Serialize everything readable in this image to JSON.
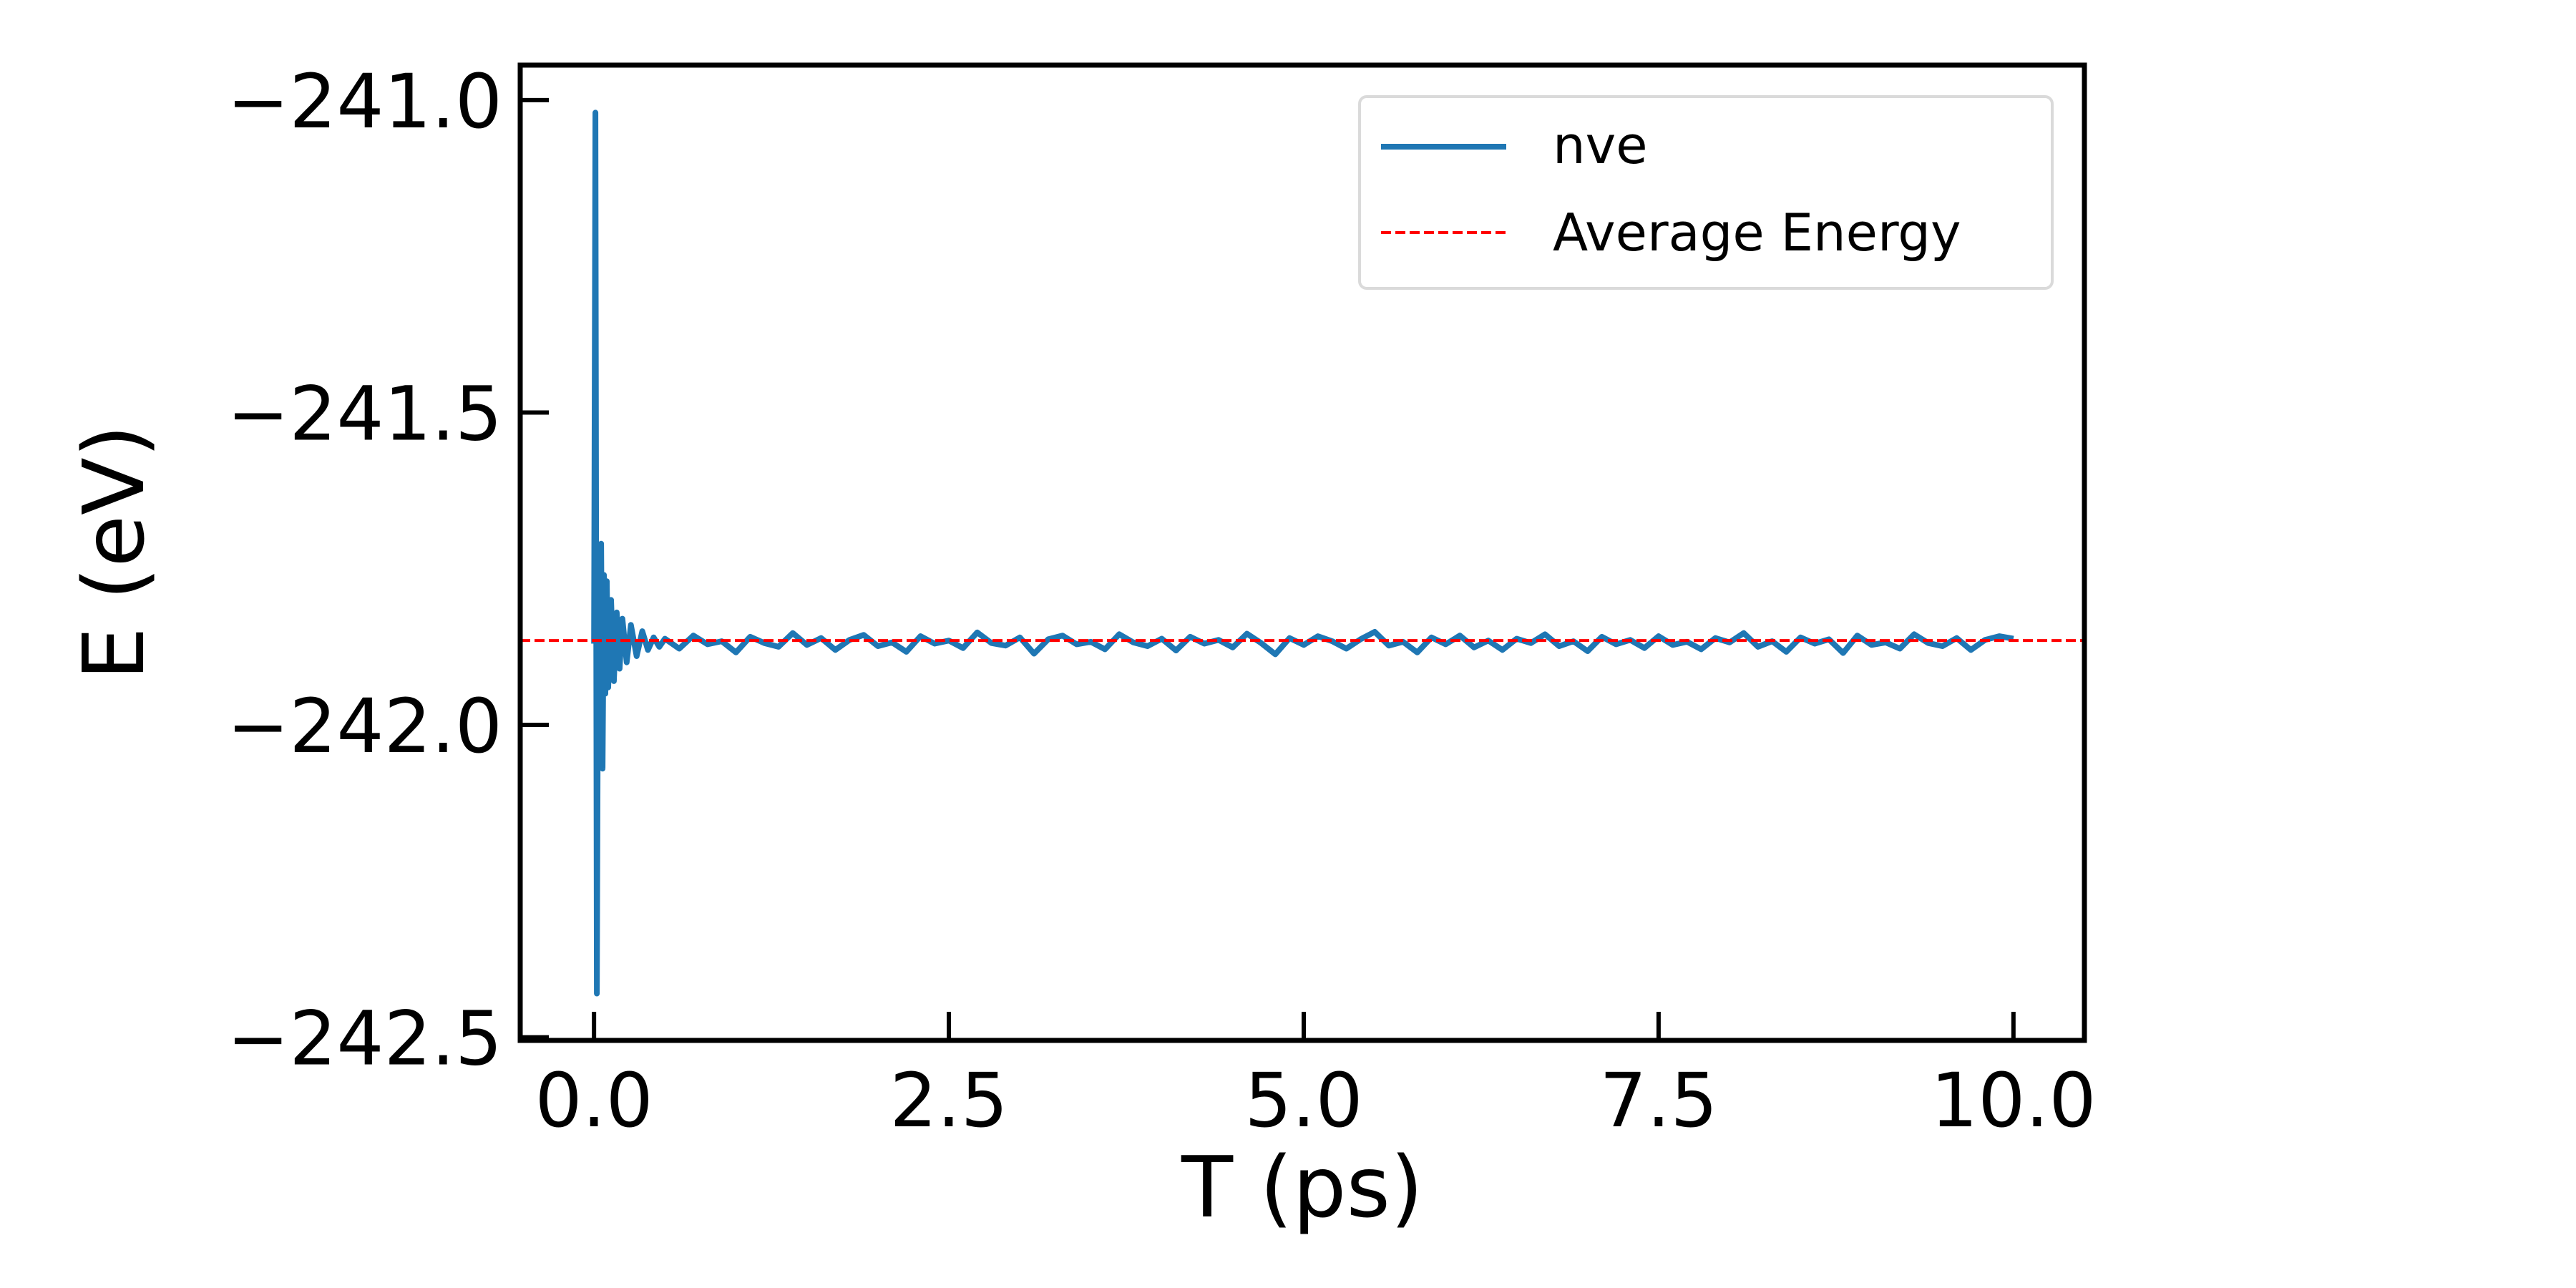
{
  "chart_data": {
    "type": "line",
    "title": "",
    "xlabel": "T (ps)",
    "ylabel": "E (eV)",
    "xlim": [
      -0.52,
      10.5
    ],
    "ylim": [
      -242.505,
      -240.944
    ],
    "xticks": [
      0.0,
      2.5,
      5.0,
      7.5,
      10.0
    ],
    "xtick_labels": [
      "0.0",
      "2.5",
      "5.0",
      "7.5",
      "10.0"
    ],
    "yticks": [
      -241.0,
      -241.5,
      -242.0,
      -242.5
    ],
    "ytick_labels": [
      "−241.0",
      "−241.5",
      "−242.0",
      "−242.5"
    ],
    "grid": false,
    "legend": {
      "position": "top-right",
      "entries": [
        "nve",
        "Average Energy"
      ]
    },
    "colors": {
      "nve": "#1f77b4",
      "average": "#ff0000"
    },
    "series": [
      {
        "name": "nve",
        "transient": {
          "x": [
            0.0,
            0.01,
            0.02,
            0.03,
            0.04,
            0.05,
            0.06,
            0.07,
            0.08,
            0.09,
            0.1,
            0.12,
            0.14,
            0.16,
            0.18,
            0.2,
            0.23,
            0.26,
            0.3,
            0.34,
            0.38,
            0.42,
            0.46
          ],
          "y": [
            -241.87,
            -241.02,
            -242.43,
            -241.74,
            -242.02,
            -241.71,
            -242.07,
            -241.76,
            -241.95,
            -241.77,
            -241.94,
            -241.8,
            -241.93,
            -241.82,
            -241.91,
            -241.83,
            -241.9,
            -241.84,
            -241.89,
            -241.85,
            -241.88,
            -241.86,
            -241.875
          ]
        },
        "steady": {
          "x_start": 0.5,
          "x_step": 0.1,
          "y": [
            -241.862,
            -241.878,
            -241.857,
            -241.871,
            -241.866,
            -241.884,
            -241.859,
            -241.869,
            -241.875,
            -241.853,
            -241.872,
            -241.861,
            -241.88,
            -241.864,
            -241.856,
            -241.874,
            -241.868,
            -241.883,
            -241.858,
            -241.87,
            -241.865,
            -241.877,
            -241.852,
            -241.869,
            -241.873,
            -241.86,
            -241.886,
            -241.863,
            -241.857,
            -241.871,
            -241.867,
            -241.879,
            -241.855,
            -241.868,
            -241.874,
            -241.862,
            -241.881,
            -241.859,
            -241.87,
            -241.864,
            -241.876,
            -241.854,
            -241.869,
            -241.887,
            -241.861,
            -241.872,
            -241.858,
            -241.866,
            -241.878,
            -241.863,
            -241.851,
            -241.873,
            -241.867,
            -241.884,
            -241.86,
            -241.871,
            -241.857,
            -241.876,
            -241.865,
            -241.88,
            -241.862,
            -241.869,
            -241.855,
            -241.874,
            -241.866,
            -241.882,
            -241.859,
            -241.871,
            -241.864,
            -241.877,
            -241.858,
            -241.872,
            -241.867,
            -241.879,
            -241.861,
            -241.868,
            -241.853,
            -241.875,
            -241.866,
            -241.883,
            -241.86,
            -241.87,
            -241.863,
            -241.885,
            -241.857,
            -241.872,
            -241.868,
            -241.878,
            -241.855,
            -241.869,
            -241.874,
            -241.861,
            -241.88,
            -241.864,
            -241.858,
            -241.862
          ]
        }
      },
      {
        "name": "Average Energy",
        "y": -241.865,
        "style": "dashed"
      }
    ]
  }
}
